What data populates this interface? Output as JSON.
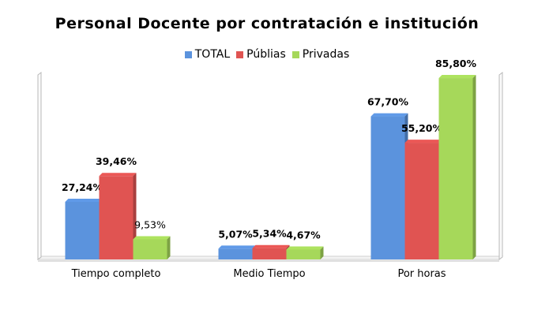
{
  "chart_data": {
    "type": "bar",
    "title": "Personal Docente por contratación e institución",
    "categories": [
      "Tiempo completo",
      "Medio Tiempo",
      "Por horas"
    ],
    "series": [
      {
        "name": "TOTAL",
        "color": "#5b93dd",
        "values": [
          27.24,
          5.07,
          67.7
        ],
        "labels": [
          "27,24%",
          "5,07%",
          "67,70%"
        ]
      },
      {
        "name": "Públias",
        "color": "#e05452",
        "values": [
          39.46,
          5.34,
          55.2
        ],
        "labels": [
          "39,46%",
          "5,34%",
          "55,20%"
        ]
      },
      {
        "name": "Privadas",
        "color": "#a6d85a",
        "values": [
          9.53,
          4.67,
          85.8
        ],
        "labels": [
          "9,53%",
          "4,67%",
          "85,80%"
        ]
      }
    ],
    "ylim": [
      0,
      100
    ],
    "legend_position": "top-center",
    "xlabel": "",
    "ylabel": ""
  }
}
